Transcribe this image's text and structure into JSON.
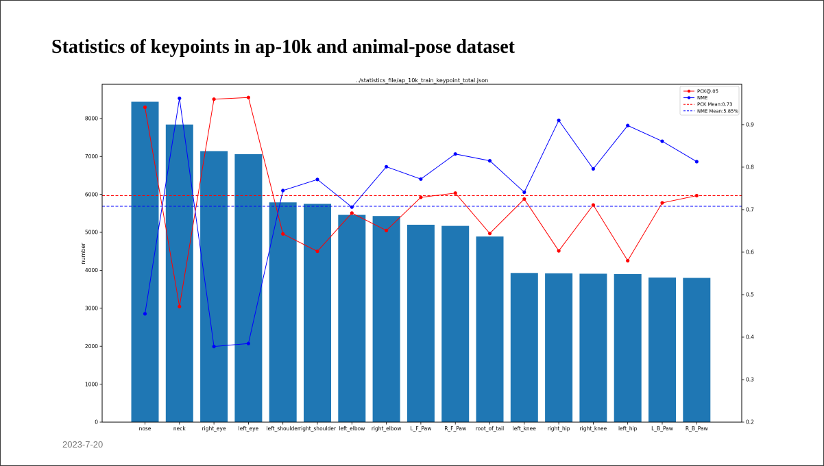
{
  "slide": {
    "title": "Statistics of keypoints in ap-10k and animal-pose dataset",
    "date": "2023-7-20"
  },
  "chart_data": {
    "type": "bar",
    "title": "../statistics_file/ap_10k_train_keypoint_total.json",
    "xlabel": "",
    "ylabel": "number",
    "ylim": [
      0,
      8900
    ],
    "y2lim": [
      0.2,
      0.995
    ],
    "yticks": [
      0,
      1000,
      2000,
      3000,
      4000,
      5000,
      6000,
      7000,
      8000
    ],
    "y2ticks": [
      0.2,
      0.3,
      0.4,
      0.5,
      0.6,
      0.7,
      0.8,
      0.9
    ],
    "grid": false,
    "legend_position": "top-right",
    "categories": [
      "nose",
      "neck",
      "right_eye",
      "left_eye",
      "left_shoulder",
      "right_shoulder",
      "left_elbow",
      "right_elbow",
      "L_F_Paw",
      "R_F_Paw",
      "root_of_tail",
      "left_knee",
      "right_hip",
      "right_knee",
      "left_hip",
      "L_B_Paw",
      "R_B_Paw"
    ],
    "values": [
      8440,
      7840,
      7140,
      7060,
      5790,
      5750,
      5460,
      5430,
      5200,
      5170,
      4890,
      3930,
      3920,
      3910,
      3900,
      3810,
      3800
    ],
    "bar_color": "#1f77b4",
    "series": [
      {
        "name": "PCK@.05",
        "axis": "right",
        "color": "#ff0000",
        "values": [
          0.941,
          0.472,
          0.96,
          0.964,
          0.643,
          0.602,
          0.692,
          0.651,
          0.729,
          0.739,
          0.644,
          0.725,
          0.603,
          0.711,
          0.58,
          0.716,
          0.733
        ]
      },
      {
        "name": "NME",
        "axis": "right",
        "color": "#0000ff",
        "values": [
          0.455,
          0.962,
          0.378,
          0.385,
          0.745,
          0.771,
          0.706,
          0.801,
          0.772,
          0.831,
          0.815,
          0.741,
          0.91,
          0.796,
          0.898,
          0.861,
          0.813
        ]
      }
    ],
    "reference_lines": [
      {
        "name": "PCK Mean:0.73",
        "axis": "right",
        "value": 0.733,
        "color": "#ff0000",
        "style": "dashed"
      },
      {
        "name": "NME Mean:5.85%",
        "axis": "right",
        "value": 0.708,
        "color": "#0000ff",
        "style": "dashed"
      }
    ]
  }
}
